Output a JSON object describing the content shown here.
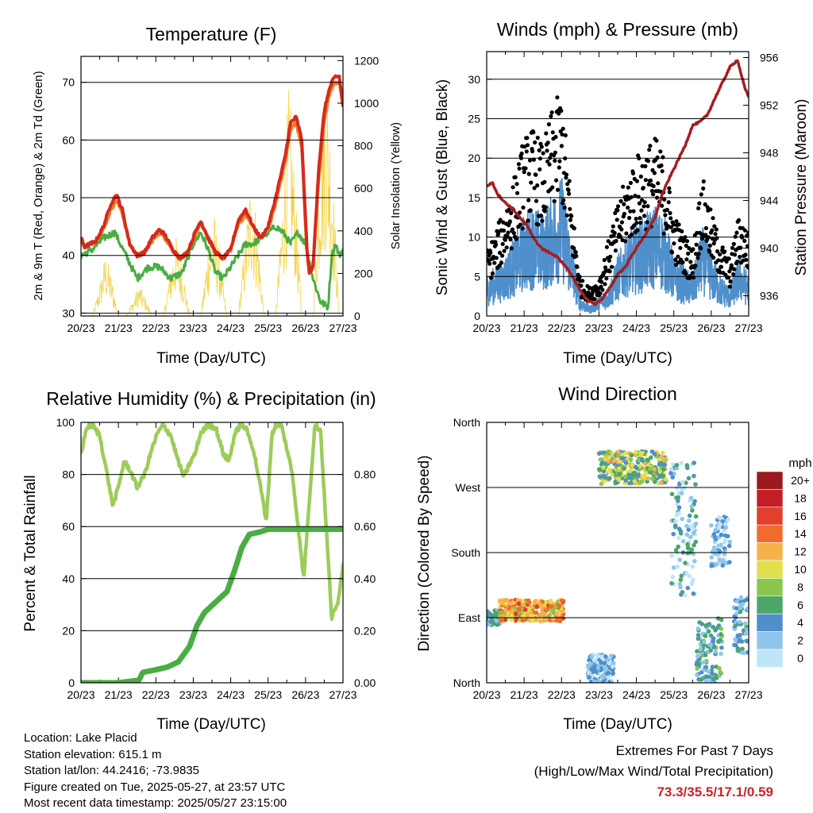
{
  "panels": {
    "temperature": {
      "title": "Temperature (F)",
      "ylabel_left": "2m & 9m T (Red, Orange) & 2m Td (Green)",
      "ylabel_right": "Solar Insolation (Yellow)",
      "xlabel": "Time (Day/UTC)",
      "yticks_left": [
        "30",
        "40",
        "50",
        "60",
        "70"
      ],
      "yticks_right": [
        "0",
        "200",
        "400",
        "600",
        "800",
        "1000",
        "1200"
      ]
    },
    "winds": {
      "title": "Winds (mph) & Pressure (mb)",
      "ylabel_left": "Sonic Wind & Gust (Blue, Black)",
      "ylabel_right": "Station Pressure (Maroon)",
      "xlabel": "Time (Day/UTC)",
      "yticks_left": [
        "0",
        "5",
        "10",
        "15",
        "20",
        "25",
        "30"
      ],
      "yticks_right": [
        "936",
        "940",
        "944",
        "948",
        "952",
        "956"
      ]
    },
    "humidity": {
      "title": "Relative Humidity (%) & Precipitation (in)",
      "ylabel_left": "Percent & Total Rainfall",
      "xlabel": "Time (Day/UTC)",
      "yticks_left": [
        "0",
        "20",
        "40",
        "60",
        "80",
        "100"
      ],
      "yticks_right": [
        "0.00",
        "0.20",
        "0.40",
        "0.60",
        "0.80"
      ]
    },
    "direction": {
      "title": "Wind Direction",
      "ylabel_left": "Direction (Colored By Speed)",
      "xlabel": "Time (Day/UTC)",
      "yticks_left": [
        "North",
        "East",
        "South",
        "West",
        "North"
      ],
      "legend_title": "mph",
      "legend_labels": [
        "20+",
        "18",
        "16",
        "14",
        "12",
        "10",
        "8",
        "6",
        "4",
        "2",
        "0"
      ]
    }
  },
  "xticks": [
    "20/23",
    "21/23",
    "22/23",
    "23/23",
    "24/23",
    "25/23",
    "26/23",
    "27/23"
  ],
  "info": {
    "location": "Location: Lake Placid",
    "elevation": "Station elevation: 615.1 m",
    "latlon": "Station lat/lon: 44.2416; -73.9835",
    "created": "Figure created on Tue, 2025-05-27, at 23:57 UTC",
    "latest": "Most recent data timestamp: 2025/05/27 23:15:00"
  },
  "extremes": {
    "title": "Extremes For Past 7 Days",
    "subtitle": "(High/Low/Max Wind/Total Precipitation)",
    "values": "73.3/35.5/17.1/0.59"
  },
  "colors": {
    "temp_2m": "#d42a1e",
    "temp_9m": "#f07f27",
    "dewpoint": "#4aad44",
    "solar": "#f2d44e",
    "wind": "#4f8fcb",
    "gust": "#000000",
    "pressure": "#a31f22",
    "rh": "#9ccc5a",
    "precip": "#4aad44",
    "speed_scale": [
      "#bfe5f7",
      "#8dc6ea",
      "#4f8fcb",
      "#4aa66a",
      "#8bc64e",
      "#e0e04c",
      "#f7b14a",
      "#f06c2d",
      "#e0402c",
      "#c41f26",
      "#9a1a1f"
    ]
  },
  "chart_data": [
    {
      "type": "line",
      "title": "Temperature (F)",
      "xlabel": "Time (Day/UTC)",
      "ylabel": "2m & 9m T (Red, Orange) & 2m Td (Green)",
      "ylabel_right": "Solar Insolation (Yellow)",
      "x_ticks": [
        "20/23",
        "21/23",
        "22/23",
        "23/23",
        "24/23",
        "25/23",
        "26/23",
        "27/23"
      ],
      "xlim": [
        0,
        7
      ],
      "ylim": [
        29.5,
        74.5
      ],
      "ylim_right": [
        0,
        1220
      ],
      "series": [
        {
          "name": "2m T",
          "axis": "left",
          "x": [
            0,
            0.1,
            0.25,
            0.4,
            0.6,
            0.8,
            0.95,
            1.1,
            1.3,
            1.5,
            1.7,
            1.9,
            2.1,
            2.25,
            2.45,
            2.65,
            2.85,
            3.05,
            3.2,
            3.4,
            3.6,
            3.8,
            4.0,
            4.2,
            4.4,
            4.6,
            4.8,
            5.0,
            5.2,
            5.45,
            5.6,
            5.75,
            5.9,
            6.0,
            6.05,
            6.1,
            6.2,
            6.35,
            6.5,
            6.6,
            6.7,
            6.8,
            6.9,
            7.0
          ],
          "y": [
            43,
            41.5,
            42,
            42.5,
            45,
            49,
            50.5,
            48,
            42,
            40,
            40.5,
            43,
            44.5,
            43.5,
            41,
            39.5,
            40.5,
            44,
            46,
            43,
            40.5,
            39.5,
            41,
            46,
            48,
            45,
            43,
            45,
            50,
            57,
            63,
            64,
            60,
            46,
            40,
            37,
            38,
            55,
            65,
            68,
            70,
            71,
            71,
            66
          ]
        },
        {
          "name": "9m T",
          "axis": "left",
          "x": [
            0,
            0.1,
            0.25,
            0.4,
            0.6,
            0.8,
            0.95,
            1.1,
            1.3,
            1.5,
            1.7,
            1.9,
            2.1,
            2.25,
            2.45,
            2.65,
            2.85,
            3.05,
            3.2,
            3.4,
            3.6,
            3.8,
            4.0,
            4.2,
            4.4,
            4.6,
            4.8,
            5.0,
            5.2,
            5.45,
            5.6,
            5.75,
            5.9,
            6.0,
            6.05,
            6.1,
            6.2,
            6.35,
            6.5,
            6.6,
            6.7,
            6.8,
            6.9,
            7.0
          ],
          "y": [
            43,
            41.5,
            42,
            42.5,
            44.5,
            48,
            49.5,
            47.5,
            42,
            40,
            40.5,
            42.5,
            44,
            43,
            41,
            39.5,
            40.5,
            43.5,
            45.5,
            43,
            40.5,
            39.5,
            41,
            45.5,
            47,
            45,
            43,
            44.5,
            49,
            56,
            62,
            63,
            59,
            45,
            40,
            37,
            38,
            53,
            63,
            67,
            69,
            70,
            70,
            66
          ]
        },
        {
          "name": "2m Td",
          "axis": "left",
          "x": [
            0,
            0.3,
            0.6,
            0.9,
            1.2,
            1.5,
            1.8,
            2.1,
            2.4,
            2.7,
            3.0,
            3.2,
            3.4,
            3.6,
            3.8,
            4.0,
            4.2,
            4.4,
            4.6,
            4.8,
            5.0,
            5.2,
            5.4,
            5.6,
            5.8,
            6.0,
            6.2,
            6.4,
            6.6,
            6.7,
            6.8,
            6.9,
            7.0
          ],
          "y": [
            40,
            41,
            43,
            44,
            40,
            36,
            38,
            38,
            36,
            37,
            42,
            44,
            41,
            37,
            36,
            38,
            40,
            42,
            42,
            43,
            44,
            45,
            44,
            42,
            44,
            42,
            36,
            32,
            31,
            40,
            42,
            40,
            41
          ]
        },
        {
          "name": "Solar Insolation",
          "axis": "right",
          "x": [
            0,
            0.3,
            0.5,
            0.65,
            0.8,
            1.0,
            1.2,
            1.4,
            1.55,
            1.7,
            1.9,
            2.2,
            2.4,
            2.55,
            2.7,
            2.9,
            3.2,
            3.4,
            3.55,
            3.7,
            3.9,
            4.2,
            4.4,
            4.55,
            4.7,
            4.9,
            5.2,
            5.4,
            5.55,
            5.7,
            5.9,
            6.2,
            6.4,
            6.55,
            6.7,
            6.9,
            7.0
          ],
          "y": [
            0,
            0,
            150,
            300,
            200,
            0,
            0,
            80,
            150,
            100,
            0,
            0,
            250,
            380,
            250,
            0,
            0,
            350,
            500,
            300,
            0,
            0,
            400,
            700,
            450,
            0,
            0,
            600,
            1100,
            700,
            0,
            0,
            900,
            1180,
            800,
            0,
            0
          ]
        }
      ]
    },
    {
      "type": "line",
      "title": "Winds (mph) & Pressure (mb)",
      "xlabel": "Time (Day/UTC)",
      "ylabel": "Sonic Wind & Gust (Blue, Black)",
      "ylabel_right": "Station Pressure (Maroon)",
      "x_ticks": [
        "20/23",
        "21/23",
        "22/23",
        "23/23",
        "24/23",
        "25/23",
        "26/23",
        "27/23"
      ],
      "xlim": [
        0,
        7
      ],
      "ylim": [
        0,
        33.5
      ],
      "ylim_right": [
        934.3,
        956.5
      ],
      "series": [
        {
          "name": "Sonic Wind",
          "axis": "left",
          "x": [
            0,
            0.25,
            0.5,
            0.75,
            1.0,
            1.25,
            1.5,
            1.75,
            2.0,
            2.25,
            2.5,
            2.75,
            3.0,
            3.25,
            3.5,
            3.75,
            4.0,
            4.25,
            4.5,
            4.75,
            5.0,
            5.25,
            5.5,
            5.75,
            6.0,
            6.25,
            6.5,
            6.75,
            7.0
          ],
          "y": [
            4,
            5,
            6,
            8,
            10,
            11,
            10,
            12,
            14,
            8,
            2,
            1,
            2,
            3,
            6,
            8,
            9,
            10,
            11,
            10,
            6,
            5,
            4,
            9,
            6,
            4,
            3,
            6,
            4
          ]
        },
        {
          "name": "Gust",
          "axis": "left",
          "x": [
            0,
            0.25,
            0.5,
            0.75,
            1.0,
            1.25,
            1.5,
            1.75,
            2.0,
            2.25,
            2.5,
            2.75,
            3.0,
            3.25,
            3.5,
            3.75,
            4.0,
            4.25,
            4.5,
            4.75,
            5.0,
            5.25,
            5.5,
            5.75,
            6.0,
            6.25,
            6.5,
            6.75,
            7.0
          ],
          "y": [
            7,
            9,
            12,
            15,
            19,
            20,
            18,
            22,
            24,
            13,
            4,
            3,
            4,
            8,
            12,
            15,
            17,
            18,
            19,
            17,
            11,
            9,
            7,
            15,
            11,
            8,
            6,
            11,
            9
          ]
        },
        {
          "name": "Station Pressure",
          "axis": "right",
          "x": [
            0,
            0.15,
            0.3,
            0.5,
            0.7,
            0.9,
            1.1,
            1.3,
            1.5,
            1.7,
            1.9,
            2.1,
            2.3,
            2.5,
            2.7,
            2.9,
            3.1,
            3.3,
            3.5,
            3.7,
            3.9,
            4.1,
            4.3,
            4.5,
            4.7,
            4.9,
            5.1,
            5.3,
            5.5,
            5.7,
            5.9,
            6.1,
            6.3,
            6.5,
            6.7,
            6.9,
            7.0
          ],
          "y": [
            945.2,
            945.5,
            944.5,
            943.8,
            943.3,
            942.5,
            941.8,
            940.6,
            939.9,
            939.6,
            939.2,
            938.5,
            937.6,
            936.4,
            935.6,
            935.3,
            935.8,
            936.7,
            937.8,
            938.4,
            939.5,
            940.5,
            941.4,
            942.6,
            944.6,
            946.0,
            947.3,
            948.6,
            950.3,
            950.6,
            951.2,
            952.6,
            953.9,
            955.2,
            955.8,
            953.4,
            952.7
          ]
        }
      ]
    },
    {
      "type": "line",
      "title": "Relative Humidity (%) & Precipitation (in)",
      "xlabel": "Time (Day/UTC)",
      "ylabel": "Percent & Total Rainfall",
      "x_ticks": [
        "20/23",
        "21/23",
        "22/23",
        "23/23",
        "24/23",
        "25/23",
        "26/23",
        "27/23"
      ],
      "xlim": [
        0,
        7
      ],
      "ylim": [
        0,
        100
      ],
      "ylim_right": [
        0,
        1.0
      ],
      "series": [
        {
          "name": "Relative Humidity",
          "axis": "left",
          "x": [
            0,
            0.15,
            0.3,
            0.5,
            0.7,
            0.85,
            1.0,
            1.15,
            1.3,
            1.5,
            1.7,
            1.9,
            2.05,
            2.2,
            2.4,
            2.6,
            2.75,
            2.9,
            3.05,
            3.2,
            3.4,
            3.6,
            3.8,
            3.95,
            4.1,
            4.25,
            4.4,
            4.6,
            4.8,
            4.95,
            5.1,
            5.2,
            5.35,
            5.5,
            5.65,
            5.8,
            5.95,
            6.1,
            6.25,
            6.4,
            6.55,
            6.7,
            6.85,
            7.0
          ],
          "y": [
            88,
            98,
            99,
            95,
            80,
            68,
            75,
            85,
            82,
            75,
            80,
            90,
            96,
            99,
            95,
            85,
            79,
            84,
            88,
            96,
            99,
            98,
            88,
            85,
            95,
            99,
            98,
            90,
            75,
            62,
            95,
            99,
            99,
            90,
            80,
            60,
            40,
            70,
            99,
            97,
            60,
            25,
            30,
            45
          ]
        },
        {
          "name": "Total Precipitation",
          "axis": "right",
          "x": [
            0,
            0.5,
            1.0,
            1.55,
            1.65,
            2.0,
            2.3,
            2.6,
            2.9,
            3.1,
            3.3,
            3.6,
            3.9,
            4.1,
            4.3,
            4.5,
            4.8,
            5.0,
            5.5,
            6.0,
            6.5,
            7.0
          ],
          "y": [
            0,
            0,
            0,
            0.01,
            0.04,
            0.05,
            0.06,
            0.08,
            0.14,
            0.22,
            0.27,
            0.31,
            0.35,
            0.43,
            0.52,
            0.57,
            0.58,
            0.59,
            0.59,
            0.59,
            0.59,
            0.59
          ]
        }
      ]
    },
    {
      "type": "scatter",
      "title": "Wind Direction",
      "xlabel": "Time (Day/UTC)",
      "ylabel": "Direction (Colored By Speed)",
      "x_ticks": [
        "20/23",
        "21/23",
        "22/23",
        "23/23",
        "24/23",
        "25/23",
        "26/23",
        "27/23"
      ],
      "y_categories": [
        "North",
        "East",
        "South",
        "West",
        "North"
      ],
      "xlim": [
        0,
        7
      ],
      "ylim": [
        0,
        360
      ],
      "colorbar": {
        "title": "mph",
        "labels": [
          "0",
          "2",
          "4",
          "6",
          "8",
          "10",
          "12",
          "14",
          "16",
          "18",
          "20+"
        ]
      },
      "clusters": [
        {
          "x": [
            0.0,
            0.35
          ],
          "y": [
            80,
            100
          ],
          "speed": [
            3,
            8
          ]
        },
        {
          "x": [
            0.35,
            2.05
          ],
          "y": [
            85,
            115
          ],
          "speed": [
            9,
            17
          ]
        },
        {
          "x": [
            2.7,
            3.4
          ],
          "y": [
            0,
            40
          ],
          "speed": [
            1,
            6
          ]
        },
        {
          "x": [
            3.0,
            4.8
          ],
          "y": [
            275,
            320
          ],
          "speed": [
            4,
            13
          ]
        },
        {
          "x": [
            4.9,
            5.6
          ],
          "y": [
            120,
            310
          ],
          "speed": [
            0,
            8
          ]
        },
        {
          "x": [
            5.6,
            6.3
          ],
          "y": [
            0,
            90
          ],
          "speed": [
            2,
            9
          ]
        },
        {
          "x": [
            6.0,
            6.5
          ],
          "y": [
            160,
            230
          ],
          "speed": [
            1,
            6
          ]
        },
        {
          "x": [
            6.6,
            7.0
          ],
          "y": [
            40,
            120
          ],
          "speed": [
            2,
            7
          ]
        }
      ]
    }
  ]
}
